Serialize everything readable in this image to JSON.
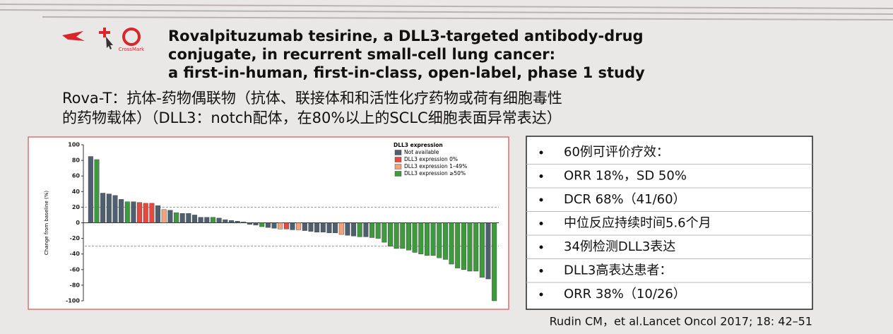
{
  "header": {
    "crossmark": "CrossMark",
    "title_lines": [
      "Rovalpituzumab tesirine, a DLL3-targeted antibody-drug",
      "conjugate, in recurrent small-cell lung cancer:",
      "a first-in-human, first-in-class, open-label, phase 1 study"
    ],
    "subtitle_lines": [
      "Rova-T：抗体-药物偶联物（抗体、联接体和和活性化疗药物或荷有细胞毒性",
      "的药物载体）（DLL3：notch配体，在80%以上的SCLC细胞表面异常表达）"
    ]
  },
  "chart_data": {
    "type": "bar",
    "y_label": "Change from baseline (%)",
    "ylim": [
      -100,
      100
    ],
    "yticks": [
      -100,
      -80,
      -60,
      -40,
      -20,
      0,
      20,
      40,
      60,
      80,
      100
    ],
    "reference_lines": [
      20,
      -30
    ],
    "legend_title": "DLL3 expression",
    "legend": [
      {
        "name": "Not available",
        "color": "#4f5f70"
      },
      {
        "name": "DLL3 expression 0%",
        "color": "#e8473f"
      },
      {
        "name": "DLL3 expression 1–49%",
        "color": "#f2a27a"
      },
      {
        "name": "DLL3 expression ≥50%",
        "color": "#3d9a3d"
      }
    ],
    "values": [
      85,
      81,
      38,
      37,
      35,
      30,
      27,
      27,
      26,
      25,
      25,
      22,
      17,
      16,
      13,
      12,
      12,
      10,
      7,
      7,
      7,
      6,
      4,
      3,
      2,
      1,
      -2,
      -3,
      -5,
      -6,
      -7,
      -8,
      -8,
      -9,
      -9,
      -10,
      -11,
      -12,
      -12,
      -13,
      -13,
      -15,
      -16,
      -17,
      -18,
      -18,
      -19,
      -20,
      -25,
      -30,
      -33,
      -33,
      -35,
      -38,
      -40,
      -42,
      -42,
      -45,
      -47,
      -53,
      -58,
      -60,
      -62,
      -62,
      -70,
      -72,
      -100
    ],
    "colors": [
      "#4f5f70",
      "#3d9a3d",
      "#4f5f70",
      "#4f5f70",
      "#4f5f70",
      "#4f5f70",
      "#3d9a3d",
      "#4f5f70",
      "#e8473f",
      "#e8473f",
      "#e8473f",
      "#4f5f70",
      "#f2a27a",
      "#4f5f70",
      "#3d9a3d",
      "#4f5f70",
      "#4f5f70",
      "#4f5f70",
      "#4f5f70",
      "#4f5f70",
      "#3d9a3d",
      "#4f5f70",
      "#4f5f70",
      "#4f5f70",
      "#4f5f70",
      "#4f5f70",
      "#4f5f70",
      "#4f5f70",
      "#3d9a3d",
      "#4f5f70",
      "#4f5f70",
      "#f2a27a",
      "#e8473f",
      "#4f5f70",
      "#f2a27a",
      "#4f5f70",
      "#4f5f70",
      "#4f5f70",
      "#4f5f70",
      "#4f5f70",
      "#4f5f70",
      "#f2a27a",
      "#4f5f70",
      "#4f5f70",
      "#3d9a3d",
      "#4f5f70",
      "#3d9a3d",
      "#3d9a3d",
      "#3d9a3d",
      "#3d9a3d",
      "#3d9a3d",
      "#3d9a3d",
      "#3d9a3d",
      "#3d9a3d",
      "#3d9a3d",
      "#3d9a3d",
      "#3d9a3d",
      "#3d9a3d",
      "#3d9a3d",
      "#3d9a3d",
      "#3d9a3d",
      "#3d9a3d",
      "#3d9a3d",
      "#3d9a3d",
      "#3d9a3d",
      "#4f5f70",
      "#3d9a3d"
    ]
  },
  "bullets": [
    "60例可评价疗效：",
    "ORR 18%，SD 50%",
    "DCR  68%（41/60）",
    "中位反应持续时间5.6个月",
    "34例检测DLL3表达",
    "DLL3高表达患者：",
    "ORR 38%（10/26）"
  ],
  "citation": "Rudin CM，et al.Lancet Oncol 2017; 18: 42–51"
}
